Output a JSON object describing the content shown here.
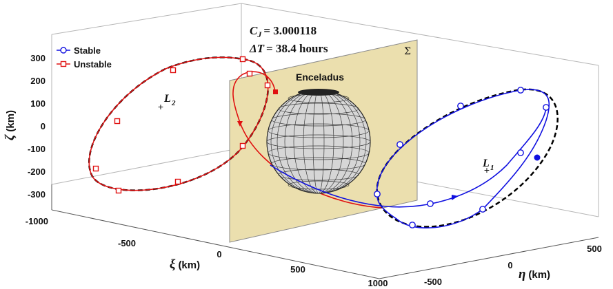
{
  "chart_data": {
    "type": "line",
    "subtype": "3d-trajectory",
    "annotation": {
      "cj_symbol": "C",
      "cj_subscript": "J",
      "cj_value": "= 3.000118",
      "dt_symbol": "ΔT",
      "dt_value": "= 38.4 hours"
    },
    "body_label": "Enceladus",
    "plane_label": "Σ",
    "points": {
      "L1": "L",
      "L1_sub": "1",
      "L2": "L",
      "L2_sub": "2"
    },
    "axes": {
      "xi": {
        "symbol": "ξ",
        "label": "(km)",
        "ticks": [
          "-1000",
          "-500",
          "0",
          "500",
          "1000"
        ]
      },
      "eta": {
        "symbol": "η",
        "label": "(km)",
        "ticks": [
          "-500",
          "0",
          "500"
        ]
      },
      "zeta": {
        "symbol": "ζ",
        "label": "(km)",
        "ticks": [
          "300",
          "200",
          "100",
          "0",
          "-100",
          "-200",
          "-300"
        ]
      }
    },
    "grid": true,
    "legend": {
      "placement": "top-left",
      "entries": [
        {
          "name": "Stable",
          "color": "#1010e0",
          "marker": "circle"
        },
        {
          "name": "Unstable",
          "color": "#e01010",
          "marker": "square"
        }
      ]
    },
    "series": [
      {
        "name": "Stable",
        "color": "#1010e0",
        "description_markers": "circle"
      },
      {
        "name": "Unstable",
        "color": "#e01010",
        "description_markers": "square"
      }
    ],
    "colors": {
      "plane": "#ebdfae",
      "sphere_fill": "#d2d2d2",
      "sphere_grid": "#3a3a3a",
      "periodic_orbit": "#000000"
    }
  }
}
